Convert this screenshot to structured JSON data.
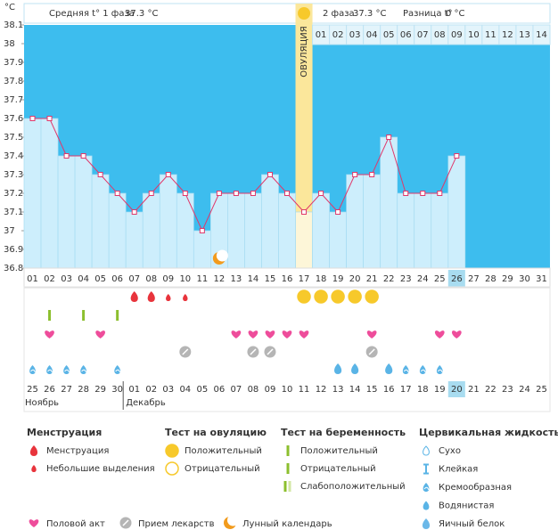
{
  "unit": "°C",
  "header": {
    "phase1_label": "Средняя t° 1 фаза",
    "phase1_value": "37.3 °C",
    "phase2_label": "2 фаза",
    "phase2_value": "37.3 °C",
    "diff_label": "Разница t°",
    "diff_value": "0 °C"
  },
  "ovulation_label": "ОВУЛЯЦИЯ",
  "phase2_days": [
    "01",
    "02",
    "03",
    "04",
    "05",
    "06",
    "07",
    "08",
    "09",
    "10",
    "11",
    "12",
    "13",
    "14"
  ],
  "chart_data": {
    "type": "line",
    "categories": [
      "01",
      "02",
      "03",
      "04",
      "05",
      "06",
      "07",
      "08",
      "09",
      "10",
      "11",
      "12",
      "13",
      "14",
      "15",
      "16",
      "17",
      "18",
      "19",
      "20",
      "21",
      "22",
      "23",
      "24",
      "25",
      "26",
      "27",
      "28",
      "29",
      "30",
      "31"
    ],
    "values": [
      37.6,
      37.6,
      37.4,
      37.4,
      37.3,
      37.2,
      37.1,
      37.2,
      37.3,
      37.2,
      37.0,
      37.2,
      37.2,
      37.2,
      37.3,
      37.2,
      37.1,
      37.2,
      37.1,
      37.3,
      37.3,
      37.5,
      37.2,
      37.2,
      37.2,
      37.4,
      null,
      null,
      null,
      null,
      null
    ],
    "color": "#e0386b",
    "ylim": [
      36.8,
      38.1
    ],
    "yticks": [
      36.8,
      36.9,
      37,
      37.1,
      37.2,
      37.3,
      37.4,
      37.5,
      37.6,
      37.7,
      37.8,
      37.9,
      38,
      38.1
    ]
  },
  "calendar": {
    "dates": [
      "25",
      "26",
      "27",
      "28",
      "29",
      "30",
      "01",
      "02",
      "03",
      "04",
      "05",
      "06",
      "07",
      "08",
      "09",
      "10",
      "11",
      "12",
      "13",
      "14",
      "15",
      "16",
      "17",
      "18",
      "19",
      "20",
      "21",
      "22",
      "23",
      "24",
      "25"
    ],
    "months": [
      "Ноябрь",
      "Декабрь"
    ]
  },
  "legend": {
    "groups": [
      {
        "title": "Менструация",
        "items": [
          "Менструация",
          "Небольшие выделения"
        ]
      },
      {
        "title": "Тест на овуляцию",
        "items": [
          "Положительный",
          "Отрицательный"
        ]
      },
      {
        "title": "Тест на беременность",
        "items": [
          "Положительный",
          "Отрицательный",
          "Слабоположительный"
        ]
      },
      {
        "title": "Цервикальная жидкость",
        "items": [
          "Сухо",
          "Клейкая",
          "Кремообразная",
          "Водянистая",
          "Яичный белок"
        ]
      }
    ],
    "bottom": [
      "Половой акт",
      "Прием лекарств",
      "Лунный календарь"
    ]
  }
}
